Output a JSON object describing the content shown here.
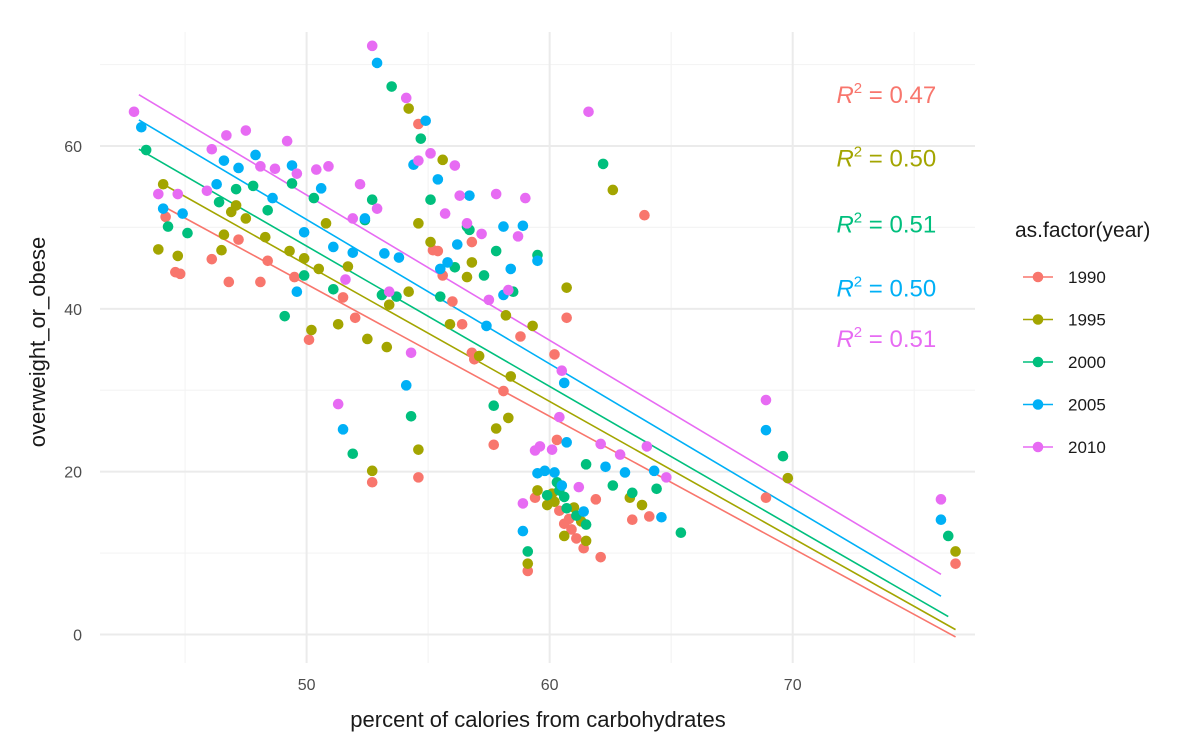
{
  "chart_data": {
    "type": "scatter",
    "title": "",
    "xlabel": "percent of calories from carbohydrates",
    "ylabel": "overweight_or_obese",
    "xlim": [
      41.5,
      77.5
    ],
    "ylim": [
      -3.5,
      74
    ],
    "x_ticks": [
      50,
      60,
      70
    ],
    "y_ticks": [
      0,
      20,
      40,
      60
    ],
    "x_tick_labels": [
      "50",
      "60",
      "70"
    ],
    "y_tick_labels": [
      "0",
      "20",
      "40",
      "60"
    ],
    "grid": true,
    "legend": {
      "title": "as.factor(year)",
      "position": "right"
    },
    "series": [
      {
        "name": "1990",
        "color": "#F8766D",
        "fit": {
          "x1": 44.1,
          "y1": 52.6,
          "x2": 76.7,
          "y2": -0.3
        },
        "annotation": {
          "prefix": "R",
          "superscript": "2",
          "value": " = 0.47",
          "x": 71.8,
          "y": 65.3
        },
        "points": [
          [
            44.2,
            51.3
          ],
          [
            44.6,
            44.5
          ],
          [
            44.8,
            44.3
          ],
          [
            46.1,
            46.1
          ],
          [
            46.8,
            43.3
          ],
          [
            47.2,
            48.5
          ],
          [
            48.1,
            43.3
          ],
          [
            48.4,
            45.9
          ],
          [
            49.5,
            43.9
          ],
          [
            50.1,
            36.2
          ],
          [
            51.5,
            41.4
          ],
          [
            52.0,
            38.9
          ],
          [
            52.7,
            18.7
          ],
          [
            54.6,
            62.7
          ],
          [
            54.6,
            19.3
          ],
          [
            55.2,
            47.2
          ],
          [
            55.4,
            47.1
          ],
          [
            55.6,
            44.1
          ],
          [
            56.0,
            40.9
          ],
          [
            56.4,
            38.1
          ],
          [
            56.8,
            48.2
          ],
          [
            56.8,
            34.6
          ],
          [
            56.9,
            33.8
          ],
          [
            57.7,
            23.3
          ],
          [
            58.8,
            36.6
          ],
          [
            59.1,
            7.8
          ],
          [
            59.4,
            16.8
          ],
          [
            60.2,
            34.4
          ],
          [
            60.3,
            23.9
          ],
          [
            60.4,
            15.2
          ],
          [
            60.6,
            13.6
          ],
          [
            60.7,
            38.9
          ],
          [
            60.9,
            12.9
          ],
          [
            61.1,
            11.8
          ],
          [
            61.4,
            10.6
          ],
          [
            62.1,
            9.5
          ],
          [
            63.9,
            51.5
          ],
          [
            64.1,
            14.5
          ],
          [
            63.4,
            14.1
          ],
          [
            68.9,
            16.8
          ],
          [
            76.7,
            8.7
          ],
          [
            58.1,
            29.9
          ],
          [
            60.8,
            14.2
          ],
          [
            61.9,
            16.6
          ]
        ]
      },
      {
        "name": "1995",
        "color": "#A3A500",
        "fit": {
          "x1": 44.1,
          "y1": 55.3,
          "x2": 76.7,
          "y2": 0.6
        },
        "annotation": {
          "prefix": "R",
          "superscript": "2",
          "value": " = 0.50",
          "x": 71.8,
          "y": 57.5
        },
        "points": [
          [
            43.9,
            47.3
          ],
          [
            44.1,
            55.3
          ],
          [
            44.7,
            46.5
          ],
          [
            46.5,
            47.2
          ],
          [
            46.6,
            49.1
          ],
          [
            46.9,
            51.9
          ],
          [
            47.1,
            52.7
          ],
          [
            47.5,
            51.1
          ],
          [
            48.3,
            48.8
          ],
          [
            49.3,
            47.1
          ],
          [
            49.9,
            46.2
          ],
          [
            50.2,
            37.4
          ],
          [
            50.5,
            44.9
          ],
          [
            50.8,
            50.5
          ],
          [
            51.3,
            38.1
          ],
          [
            51.7,
            45.2
          ],
          [
            52.5,
            36.3
          ],
          [
            52.7,
            20.1
          ],
          [
            53.3,
            35.3
          ],
          [
            53.4,
            40.5
          ],
          [
            54.2,
            64.6
          ],
          [
            54.2,
            42.1
          ],
          [
            54.6,
            22.7
          ],
          [
            54.6,
            50.5
          ],
          [
            55.1,
            48.2
          ],
          [
            55.6,
            58.3
          ],
          [
            55.9,
            38.1
          ],
          [
            56.6,
            43.9
          ],
          [
            56.8,
            45.7
          ],
          [
            57.1,
            34.2
          ],
          [
            57.8,
            25.3
          ],
          [
            58.2,
            39.2
          ],
          [
            58.4,
            31.7
          ],
          [
            59.1,
            8.7
          ],
          [
            59.3,
            37.9
          ],
          [
            59.5,
            17.7
          ],
          [
            59.9,
            15.9
          ],
          [
            60.1,
            17.3
          ],
          [
            60.2,
            16.3
          ],
          [
            60.6,
            12.1
          ],
          [
            60.7,
            42.6
          ],
          [
            61.0,
            15.6
          ],
          [
            61.5,
            11.5
          ],
          [
            62.6,
            54.6
          ],
          [
            63.3,
            16.8
          ],
          [
            63.8,
            15.9
          ],
          [
            69.8,
            19.2
          ],
          [
            76.7,
            10.2
          ],
          [
            61.3,
            13.9
          ],
          [
            58.3,
            26.6
          ]
        ]
      },
      {
        "name": "2000",
        "color": "#00BF7D",
        "fit": {
          "x1": 43.1,
          "y1": 59.6,
          "x2": 76.4,
          "y2": 2.2
        },
        "annotation": {
          "prefix": "R",
          "superscript": "2",
          "value": " = 0.51",
          "x": 71.8,
          "y": 49.4
        },
        "points": [
          [
            43.4,
            59.5
          ],
          [
            44.3,
            50.1
          ],
          [
            45.1,
            49.3
          ],
          [
            46.4,
            53.1
          ],
          [
            47.1,
            54.7
          ],
          [
            47.8,
            55.1
          ],
          [
            48.4,
            52.1
          ],
          [
            49.1,
            39.1
          ],
          [
            49.4,
            55.4
          ],
          [
            49.9,
            44.1
          ],
          [
            50.3,
            53.6
          ],
          [
            51.1,
            42.4
          ],
          [
            51.9,
            22.2
          ],
          [
            52.4,
            50.9
          ],
          [
            52.7,
            53.4
          ],
          [
            53.1,
            41.7
          ],
          [
            53.5,
            67.3
          ],
          [
            53.7,
            41.5
          ],
          [
            54.3,
            26.8
          ],
          [
            54.7,
            60.9
          ],
          [
            55.1,
            53.4
          ],
          [
            55.5,
            41.5
          ],
          [
            56.1,
            45.1
          ],
          [
            56.7,
            49.7
          ],
          [
            57.3,
            44.1
          ],
          [
            57.7,
            28.1
          ],
          [
            58.5,
            42.1
          ],
          [
            59.1,
            10.2
          ],
          [
            59.5,
            46.6
          ],
          [
            59.9,
            17.1
          ],
          [
            60.3,
            18.7
          ],
          [
            60.4,
            17.7
          ],
          [
            60.6,
            16.9
          ],
          [
            61.1,
            14.6
          ],
          [
            61.5,
            20.9
          ],
          [
            61.5,
            13.5
          ],
          [
            62.2,
            57.8
          ],
          [
            62.6,
            18.3
          ],
          [
            63.4,
            17.4
          ],
          [
            64.4,
            17.9
          ],
          [
            65.4,
            12.5
          ],
          [
            69.6,
            21.9
          ],
          [
            76.4,
            12.1
          ],
          [
            60.7,
            15.5
          ],
          [
            57.8,
            47.1
          ],
          [
            56.6,
            50.1
          ]
        ]
      },
      {
        "name": "2005",
        "color": "#00B0F6",
        "fit": {
          "x1": 43.1,
          "y1": 63.2,
          "x2": 76.1,
          "y2": 4.7
        },
        "annotation": {
          "prefix": "R",
          "superscript": "2",
          "value": " = 0.50",
          "x": 71.8,
          "y": 41.5
        },
        "points": [
          [
            43.2,
            62.3
          ],
          [
            44.1,
            52.3
          ],
          [
            44.9,
            51.7
          ],
          [
            46.3,
            55.3
          ],
          [
            46.6,
            58.2
          ],
          [
            47.2,
            57.3
          ],
          [
            47.9,
            58.9
          ],
          [
            48.6,
            53.6
          ],
          [
            49.4,
            57.6
          ],
          [
            49.6,
            42.1
          ],
          [
            49.9,
            49.4
          ],
          [
            50.6,
            54.8
          ],
          [
            51.1,
            47.6
          ],
          [
            51.5,
            25.2
          ],
          [
            51.9,
            46.9
          ],
          [
            52.4,
            51.1
          ],
          [
            52.9,
            70.2
          ],
          [
            53.2,
            46.8
          ],
          [
            53.8,
            46.3
          ],
          [
            54.1,
            30.6
          ],
          [
            54.4,
            57.7
          ],
          [
            54.9,
            63.1
          ],
          [
            55.4,
            55.9
          ],
          [
            55.5,
            44.9
          ],
          [
            56.2,
            47.9
          ],
          [
            56.7,
            53.9
          ],
          [
            57.4,
            37.9
          ],
          [
            58.1,
            41.7
          ],
          [
            58.4,
            44.9
          ],
          [
            58.9,
            12.7
          ],
          [
            58.9,
            50.2
          ],
          [
            59.5,
            45.9
          ],
          [
            59.5,
            19.8
          ],
          [
            59.8,
            20.1
          ],
          [
            60.2,
            19.9
          ],
          [
            60.5,
            18.3
          ],
          [
            60.6,
            30.9
          ],
          [
            60.7,
            23.6
          ],
          [
            61.4,
            15.1
          ],
          [
            62.3,
            20.6
          ],
          [
            63.1,
            19.9
          ],
          [
            64.3,
            20.1
          ],
          [
            64.6,
            14.4
          ],
          [
            68.9,
            25.1
          ],
          [
            76.1,
            14.1
          ],
          [
            58.1,
            50.1
          ],
          [
            55.8,
            45.7
          ]
        ]
      },
      {
        "name": "2010",
        "color": "#E76BF3",
        "fit": {
          "x1": 43.1,
          "y1": 66.3,
          "x2": 76.1,
          "y2": 7.4
        },
        "annotation": {
          "prefix": "R",
          "superscript": "2",
          "value": " = 0.51",
          "x": 71.8,
          "y": 35.3
        },
        "points": [
          [
            42.9,
            64.2
          ],
          [
            43.9,
            54.1
          ],
          [
            44.7,
            54.1
          ],
          [
            45.9,
            54.5
          ],
          [
            46.1,
            59.6
          ],
          [
            46.7,
            61.3
          ],
          [
            47.5,
            61.9
          ],
          [
            48.1,
            57.5
          ],
          [
            48.7,
            57.2
          ],
          [
            49.2,
            60.6
          ],
          [
            49.6,
            56.6
          ],
          [
            50.4,
            57.1
          ],
          [
            50.9,
            57.5
          ],
          [
            51.3,
            28.3
          ],
          [
            51.6,
            43.6
          ],
          [
            51.9,
            51.1
          ],
          [
            52.2,
            55.3
          ],
          [
            52.7,
            72.3
          ],
          [
            52.9,
            52.3
          ],
          [
            53.4,
            42.1
          ],
          [
            54.1,
            65.9
          ],
          [
            54.3,
            34.6
          ],
          [
            54.6,
            58.2
          ],
          [
            55.1,
            59.1
          ],
          [
            55.7,
            51.7
          ],
          [
            56.1,
            57.6
          ],
          [
            56.6,
            50.5
          ],
          [
            57.2,
            49.2
          ],
          [
            57.8,
            54.1
          ],
          [
            58.3,
            42.3
          ],
          [
            58.7,
            48.9
          ],
          [
            59.0,
            53.6
          ],
          [
            59.4,
            22.6
          ],
          [
            59.6,
            23.1
          ],
          [
            60.1,
            22.7
          ],
          [
            60.4,
            26.7
          ],
          [
            60.5,
            32.4
          ],
          [
            61.2,
            18.1
          ],
          [
            61.6,
            64.2
          ],
          [
            62.1,
            23.4
          ],
          [
            62.9,
            22.1
          ],
          [
            64.0,
            23.1
          ],
          [
            64.8,
            19.3
          ],
          [
            68.9,
            28.8
          ],
          [
            76.1,
            16.6
          ],
          [
            58.9,
            16.1
          ],
          [
            56.3,
            53.9
          ],
          [
            57.5,
            41.1
          ]
        ]
      }
    ]
  }
}
